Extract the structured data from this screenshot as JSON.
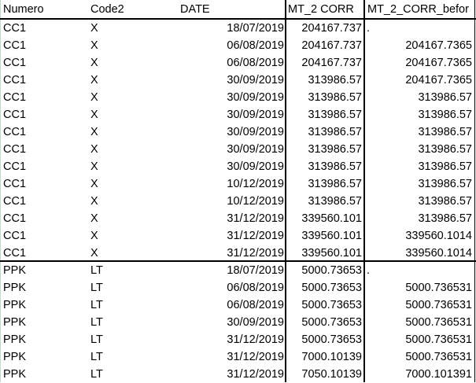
{
  "headers": {
    "numero": "Numero",
    "code2": "Code2",
    "date": "DATE",
    "mt": "MT_2 CORR",
    "before": "MT_2_CORR_befor"
  },
  "rows": [
    {
      "numero": "CC1",
      "code2": "X",
      "date": "18/07/2019",
      "mt": "204167.737",
      "before": "."
    },
    {
      "numero": "CC1",
      "code2": "X",
      "date": "06/08/2019",
      "mt": "204167.737",
      "before": "204167.7365"
    },
    {
      "numero": "CC1",
      "code2": "X",
      "date": "06/08/2019",
      "mt": "204167.737",
      "before": "204167.7365"
    },
    {
      "numero": "CC1",
      "code2": "X",
      "date": "30/09/2019",
      "mt": "313986.57",
      "before": "204167.7365"
    },
    {
      "numero": "CC1",
      "code2": "X",
      "date": "30/09/2019",
      "mt": "313986.57",
      "before": "313986.57"
    },
    {
      "numero": "CC1",
      "code2": "X",
      "date": "30/09/2019",
      "mt": "313986.57",
      "before": "313986.57"
    },
    {
      "numero": "CC1",
      "code2": "X",
      "date": "30/09/2019",
      "mt": "313986.57",
      "before": "313986.57"
    },
    {
      "numero": "CC1",
      "code2": "X",
      "date": "30/09/2019",
      "mt": "313986.57",
      "before": "313986.57"
    },
    {
      "numero": "CC1",
      "code2": "X",
      "date": "30/09/2019",
      "mt": "313986.57",
      "before": "313986.57"
    },
    {
      "numero": "CC1",
      "code2": "X",
      "date": "10/12/2019",
      "mt": "313986.57",
      "before": "313986.57"
    },
    {
      "numero": "CC1",
      "code2": "X",
      "date": "10/12/2019",
      "mt": "313986.57",
      "before": "313986.57"
    },
    {
      "numero": "CC1",
      "code2": "X",
      "date": "31/12/2019",
      "mt": "339560.101",
      "before": "313986.57"
    },
    {
      "numero": "CC1",
      "code2": "X",
      "date": "31/12/2019",
      "mt": "339560.101",
      "before": "339560.1014"
    },
    {
      "numero": "CC1",
      "code2": "X",
      "date": "31/12/2019",
      "mt": "339560.101",
      "before": "339560.1014"
    },
    {
      "numero": "PPK",
      "code2": "LT",
      "date": "18/07/2019",
      "mt": "5000.73653",
      "before": "."
    },
    {
      "numero": "PPK",
      "code2": "LT",
      "date": "06/08/2019",
      "mt": "5000.73653",
      "before": "5000.736531"
    },
    {
      "numero": "PPK",
      "code2": "LT",
      "date": "06/08/2019",
      "mt": "5000.73653",
      "before": "5000.736531"
    },
    {
      "numero": "PPK",
      "code2": "LT",
      "date": "30/09/2019",
      "mt": "5000.73653",
      "before": "5000.736531"
    },
    {
      "numero": "PPK",
      "code2": "LT",
      "date": "31/12/2019",
      "mt": "5000.73653",
      "before": "5000.736531"
    },
    {
      "numero": "PPK",
      "code2": "LT",
      "date": "31/12/2019",
      "mt": "7000.10139",
      "before": "5000.736531"
    },
    {
      "numero": "PPK",
      "code2": "LT",
      "date": "31/12/2019",
      "mt": "7050.10139",
      "before": "7000.101391"
    }
  ]
}
